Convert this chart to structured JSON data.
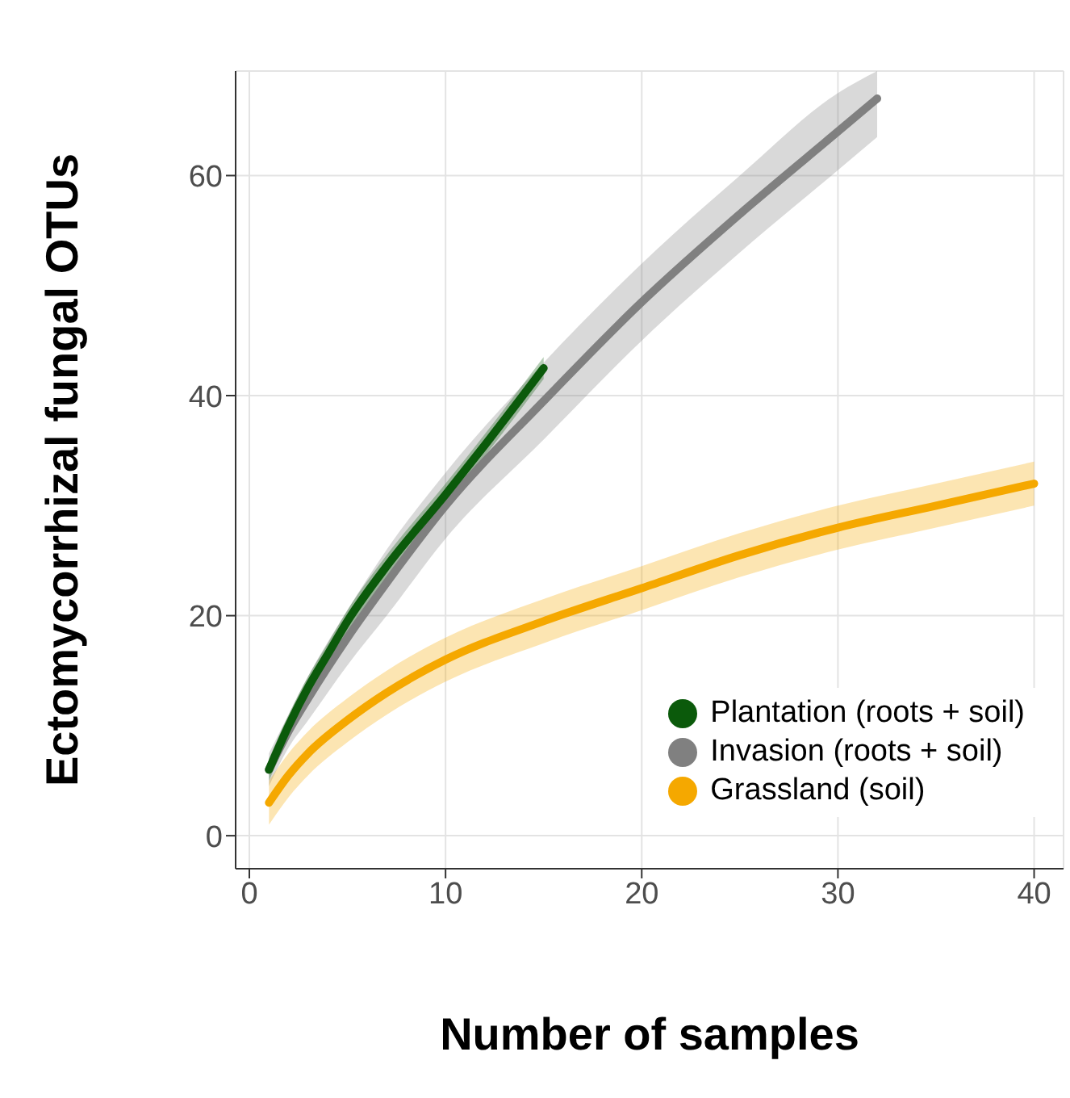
{
  "chart_data": {
    "type": "line",
    "xlabel": "Number of samples",
    "ylabel": "Ectomycorrhizal fungal OTUs",
    "xlim": [
      -0.7,
      41.5
    ],
    "ylim": [
      -3,
      69.5
    ],
    "xticks": [
      0,
      10,
      20,
      30,
      40
    ],
    "yticks": [
      0,
      20,
      40,
      60
    ],
    "grid": true,
    "legend": "bottom right",
    "series": [
      {
        "name": "Invasion (roots + soil)",
        "color": "#808080",
        "x": [
          1,
          2,
          3,
          5,
          7,
          10,
          15,
          20,
          25,
          30,
          32
        ],
        "values": [
          6,
          9.5,
          12.5,
          18,
          23,
          30,
          39.5,
          48.5,
          56.5,
          64,
          67
        ],
        "lower": [
          4.5,
          8,
          10.5,
          15.5,
          20,
          27,
          36,
          45,
          53,
          60.5,
          63.5
        ],
        "upper": [
          7.5,
          11,
          14.5,
          20.5,
          26,
          33,
          43,
          52,
          60,
          67.5,
          69.5
        ]
      },
      {
        "name": "Plantation (roots + soil)",
        "color": "#0b5a0b",
        "x": [
          1,
          2,
          3,
          4,
          5,
          7,
          10,
          12,
          15
        ],
        "values": [
          6,
          10,
          13.5,
          16.5,
          19.5,
          24.5,
          31,
          35.5,
          42.5
        ],
        "lower": [
          5,
          9,
          12.5,
          15.5,
          18.5,
          23.5,
          30,
          34.5,
          41.5
        ],
        "upper": [
          7,
          11,
          14.5,
          17.5,
          20.5,
          25.5,
          32,
          36.5,
          43.5
        ]
      },
      {
        "name": "Grassland (soil)",
        "color": "#f5a800",
        "x": [
          1,
          2,
          3,
          5,
          7,
          10,
          15,
          20,
          25,
          30,
          35,
          40
        ],
        "values": [
          3,
          5.5,
          7.5,
          10.5,
          13,
          16,
          19.5,
          22.5,
          25.5,
          28,
          30,
          32
        ],
        "lower": [
          1,
          3.5,
          5.5,
          8.5,
          11,
          14,
          17.5,
          20.5,
          23.5,
          26,
          28,
          30
        ],
        "upper": [
          5,
          7.5,
          9.5,
          12.5,
          15,
          18,
          21.5,
          24.5,
          27.5,
          30,
          32,
          34
        ]
      }
    ]
  }
}
